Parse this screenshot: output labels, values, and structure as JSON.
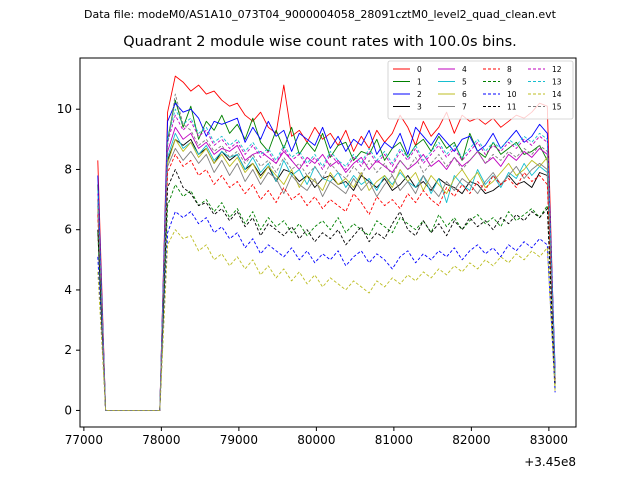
{
  "figure_title": "Data file: modeM0/AS1A10_073T04_9000004058_28091cztM0_level2_quad_clean.evt",
  "chart_data": {
    "type": "line",
    "title": "Quadrant 2 module wise count rates with 100.0s bins.",
    "xlabel": "",
    "ylabel": "",
    "x_offset_label": "+3.45e8",
    "xlim": [
      76950,
      83350
    ],
    "ylim": [
      -0.55,
      11.7
    ],
    "xticks": [
      77000,
      78000,
      79000,
      80000,
      81000,
      82000,
      83000
    ],
    "yticks": [
      0,
      2,
      4,
      6,
      8,
      10
    ],
    "grid": false,
    "legend_placement": "top-right",
    "legend_columns": 4,
    "x": [
      77180,
      77280,
      77380,
      77480,
      77580,
      77680,
      77780,
      77880,
      77980,
      78080,
      78180,
      78280,
      78380,
      78480,
      78580,
      78680,
      78780,
      78880,
      78980,
      79080,
      79180,
      79280,
      79380,
      79480,
      79580,
      79680,
      79780,
      79880,
      79980,
      80080,
      80180,
      80280,
      80380,
      80480,
      80580,
      80680,
      80780,
      80880,
      80980,
      81080,
      81180,
      81280,
      81380,
      81480,
      81580,
      81680,
      81780,
      81880,
      81980,
      82080,
      82180,
      82280,
      82380,
      82480,
      82580,
      82680,
      82780,
      82880,
      82980,
      83080
    ],
    "series": [
      {
        "name": "0",
        "color": "#ff0000",
        "dash": "solid",
        "values": [
          8.3,
          0.0,
          0.0,
          0.0,
          0.0,
          0.0,
          0.0,
          0.0,
          0.0,
          9.9,
          11.1,
          10.9,
          10.6,
          10.8,
          10.5,
          10.6,
          10.3,
          10.1,
          10.2,
          9.8,
          9.6,
          9.9,
          9.4,
          9.2,
          10.8,
          9.1,
          9.3,
          8.9,
          9.4,
          9.0,
          9.2,
          8.8,
          9.3,
          8.6,
          9.1,
          8.7,
          9.3,
          8.9,
          9.2,
          9.8,
          9.4,
          8.8,
          9.6,
          9.1,
          9.4,
          9.9,
          9.2,
          9.8,
          9.6,
          9.7,
          9.5,
          9.7,
          9.4,
          9.6,
          9.8,
          9.7,
          9.9,
          10.2,
          10.1,
          1.0
        ]
      },
      {
        "name": "1",
        "color": "#008000",
        "dash": "solid",
        "values": [
          7.5,
          0.0,
          0.0,
          0.0,
          0.0,
          0.0,
          0.0,
          0.0,
          0.0,
          9.0,
          10.3,
          9.4,
          10.1,
          9.0,
          9.6,
          9.3,
          9.8,
          9.2,
          9.5,
          9.0,
          9.7,
          8.9,
          8.6,
          9.3,
          8.7,
          9.4,
          8.5,
          8.9,
          8.6,
          9.2,
          8.4,
          8.8,
          8.9,
          8.3,
          8.6,
          8.5,
          9.0,
          8.3,
          8.7,
          8.9,
          8.4,
          8.8,
          9.0,
          8.6,
          9.1,
          8.7,
          8.9,
          8.3,
          9.2,
          8.6,
          8.4,
          8.9,
          8.5,
          8.7,
          8.9,
          8.5,
          8.6,
          8.8,
          8.3,
          1.2
        ]
      },
      {
        "name": "2",
        "color": "#0000ff",
        "dash": "solid",
        "values": [
          7.8,
          0.0,
          0.0,
          0.0,
          0.0,
          0.0,
          0.0,
          0.0,
          0.0,
          9.6,
          10.2,
          9.9,
          10.0,
          9.7,
          9.1,
          9.6,
          9.5,
          9.6,
          9.7,
          8.9,
          9.4,
          9.0,
          9.6,
          9.1,
          9.3,
          8.6,
          9.2,
          9.0,
          8.8,
          9.4,
          8.7,
          9.1,
          8.6,
          9.0,
          8.8,
          9.3,
          8.5,
          8.9,
          8.7,
          9.2,
          8.5,
          9.4,
          9.1,
          8.8,
          9.2,
          8.9,
          8.6,
          9.0,
          9.1,
          8.6,
          8.8,
          9.2,
          8.7,
          9.0,
          9.3,
          8.9,
          9.1,
          9.5,
          9.2,
          1.4
        ]
      },
      {
        "name": "3",
        "color": "#000000",
        "dash": "solid",
        "values": [
          6.8,
          0.0,
          0.0,
          0.0,
          0.0,
          0.0,
          0.0,
          0.0,
          0.0,
          8.3,
          9.0,
          8.8,
          9.0,
          8.5,
          8.7,
          8.2,
          8.6,
          8.3,
          8.5,
          8.0,
          8.2,
          7.8,
          8.1,
          7.6,
          8.0,
          7.9,
          7.6,
          7.8,
          7.4,
          7.7,
          7.8,
          7.5,
          7.6,
          7.3,
          7.8,
          7.6,
          7.4,
          7.7,
          7.3,
          7.5,
          7.8,
          7.4,
          7.6,
          7.3,
          7.7,
          7.5,
          7.4,
          7.2,
          7.6,
          7.5,
          7.2,
          7.3,
          7.5,
          7.8,
          7.5,
          7.6,
          7.4,
          7.9,
          7.8,
          1.0
        ]
      },
      {
        "name": "4",
        "color": "#bf00bf",
        "dash": "solid",
        "values": [
          7.0,
          0.0,
          0.0,
          0.0,
          0.0,
          0.0,
          0.0,
          0.0,
          0.0,
          8.6,
          9.4,
          9.0,
          9.2,
          8.7,
          8.9,
          8.5,
          8.7,
          8.6,
          8.8,
          8.3,
          8.5,
          8.6,
          8.4,
          8.2,
          8.6,
          8.3,
          8.0,
          8.4,
          8.2,
          8.5,
          8.1,
          8.3,
          7.9,
          8.2,
          8.4,
          8.0,
          8.3,
          8.1,
          7.9,
          8.3,
          8.0,
          8.2,
          8.5,
          8.1,
          8.3,
          8.0,
          8.4,
          8.1,
          8.3,
          8.6,
          8.2,
          8.4,
          8.1,
          8.5,
          8.3,
          8.6,
          8.4,
          8.7,
          8.5,
          1.1
        ]
      },
      {
        "name": "5",
        "color": "#17becf",
        "dash": "solid",
        "values": [
          6.9,
          0.0,
          0.0,
          0.0,
          0.0,
          0.0,
          0.0,
          0.0,
          0.0,
          8.4,
          9.2,
          8.7,
          8.9,
          8.5,
          8.8,
          8.3,
          8.6,
          8.4,
          8.5,
          8.0,
          8.4,
          7.9,
          8.2,
          7.6,
          8.3,
          7.8,
          8.0,
          7.5,
          8.1,
          7.7,
          7.6,
          7.9,
          7.4,
          7.8,
          7.5,
          7.7,
          7.3,
          7.8,
          7.5,
          7.9,
          7.6,
          7.4,
          7.8,
          7.2,
          7.7,
          6.9,
          7.8,
          7.5,
          7.3,
          8.0,
          7.5,
          7.8,
          7.4,
          7.9,
          7.7,
          8.2,
          7.8,
          8.1,
          7.9,
          1.0
        ]
      },
      {
        "name": "6",
        "color": "#bcbd22",
        "dash": "solid",
        "values": [
          6.7,
          0.0,
          0.0,
          0.0,
          0.0,
          0.0,
          0.0,
          0.0,
          0.0,
          8.2,
          9.0,
          8.6,
          8.9,
          8.4,
          8.7,
          8.2,
          8.5,
          8.1,
          8.4,
          7.9,
          8.2,
          7.7,
          8.1,
          7.8,
          7.5,
          8.0,
          7.4,
          7.8,
          7.6,
          7.3,
          7.9,
          7.5,
          7.7,
          7.4,
          7.9,
          7.3,
          7.6,
          7.8,
          7.4,
          8.0,
          7.6,
          7.9,
          7.3,
          7.8,
          7.5,
          7.2,
          7.7,
          8.0,
          7.6,
          7.9,
          7.4,
          7.6,
          7.9,
          8.2,
          7.8,
          8.0,
          8.3,
          8.1,
          8.4,
          0.8
        ]
      },
      {
        "name": "7",
        "color": "#808080",
        "dash": "solid",
        "values": [
          6.6,
          0.0,
          0.0,
          0.0,
          0.0,
          0.0,
          0.0,
          0.0,
          0.0,
          8.1,
          8.7,
          8.3,
          8.6,
          8.2,
          8.5,
          7.9,
          8.3,
          7.8,
          8.2,
          7.6,
          8.0,
          7.5,
          7.9,
          7.7,
          7.2,
          7.8,
          7.5,
          7.3,
          7.7,
          7.1,
          7.6,
          7.4,
          7.2,
          7.7,
          7.3,
          7.6,
          7.1,
          7.5,
          7.8,
          7.3,
          7.6,
          7.2,
          7.8,
          7.4,
          7.1,
          7.6,
          7.3,
          7.7,
          7.5,
          7.2,
          7.6,
          7.9,
          7.5,
          7.8,
          8.1,
          7.7,
          8.0,
          8.2,
          8.0,
          0.9
        ]
      },
      {
        "name": "8",
        "color": "#ff0000",
        "dash": "dashed",
        "values": [
          6.5,
          0.0,
          0.0,
          0.0,
          0.0,
          0.0,
          0.0,
          0.0,
          0.0,
          7.9,
          8.5,
          8.1,
          8.3,
          7.8,
          8.0,
          7.5,
          7.8,
          7.4,
          7.6,
          7.2,
          7.5,
          7.0,
          7.3,
          6.9,
          7.4,
          7.0,
          7.2,
          6.8,
          7.1,
          6.7,
          7.0,
          6.8,
          6.6,
          7.2,
          6.9,
          6.5,
          7.1,
          6.8,
          7.0,
          6.7,
          7.2,
          6.9,
          7.3,
          7.0,
          6.8,
          7.4,
          7.1,
          7.5,
          7.2,
          7.6,
          7.3,
          7.8,
          7.5,
          7.7,
          7.4,
          7.9,
          7.6,
          7.8,
          7.5,
          0.9
        ]
      },
      {
        "name": "9",
        "color": "#008000",
        "dash": "dashed",
        "values": [
          5.9,
          0.0,
          0.0,
          0.0,
          0.0,
          0.0,
          0.0,
          0.0,
          0.0,
          6.8,
          7.5,
          7.1,
          7.3,
          6.8,
          7.0,
          6.6,
          6.9,
          6.4,
          6.7,
          6.2,
          6.6,
          6.0,
          6.4,
          6.1,
          6.3,
          5.9,
          6.2,
          5.8,
          6.1,
          6.3,
          6.0,
          6.4,
          5.9,
          6.2,
          6.0,
          5.8,
          6.3,
          6.1,
          5.9,
          6.4,
          6.2,
          6.0,
          6.3,
          5.9,
          6.5,
          6.1,
          6.4,
          6.0,
          6.3,
          6.5,
          6.2,
          6.4,
          6.1,
          6.6,
          6.3,
          6.5,
          6.7,
          6.4,
          6.8,
          0.7
        ]
      },
      {
        "name": "10",
        "color": "#0000ff",
        "dash": "dashed",
        "values": [
          5.1,
          0.0,
          0.0,
          0.0,
          0.0,
          0.0,
          0.0,
          0.0,
          0.0,
          5.9,
          6.6,
          6.4,
          6.6,
          6.2,
          6.4,
          5.9,
          6.1,
          5.7,
          5.9,
          5.4,
          5.7,
          5.2,
          5.5,
          5.3,
          5.1,
          5.4,
          5.0,
          5.3,
          4.9,
          5.2,
          5.0,
          5.3,
          4.8,
          5.1,
          5.3,
          4.9,
          5.2,
          5.0,
          4.7,
          5.1,
          5.3,
          4.9,
          5.2,
          5.0,
          5.3,
          5.1,
          5.4,
          5.0,
          5.3,
          5.5,
          5.2,
          5.4,
          5.1,
          5.5,
          5.3,
          5.6,
          5.4,
          5.7,
          5.5,
          0.6
        ]
      },
      {
        "name": "11",
        "color": "#000000",
        "dash": "dashed",
        "values": [
          6.0,
          0.0,
          0.0,
          0.0,
          0.0,
          0.0,
          0.0,
          0.0,
          0.0,
          7.4,
          8.0,
          7.4,
          7.2,
          6.8,
          6.9,
          6.5,
          6.7,
          6.3,
          6.6,
          6.1,
          6.4,
          5.8,
          6.2,
          6.0,
          5.8,
          6.1,
          5.7,
          6.0,
          5.6,
          5.9,
          5.7,
          6.0,
          5.5,
          5.8,
          6.1,
          5.6,
          5.9,
          5.7,
          6.2,
          6.6,
          6.0,
          5.8,
          6.3,
          5.9,
          6.2,
          5.8,
          6.3,
          6.0,
          6.4,
          6.1,
          6.3,
          6.0,
          6.4,
          6.2,
          6.5,
          6.3,
          6.6,
          6.4,
          6.7,
          0.9
        ]
      },
      {
        "name": "12",
        "color": "#bf00bf",
        "dash": "dashed",
        "values": [
          7.2,
          0.0,
          0.0,
          0.0,
          0.0,
          0.0,
          0.0,
          0.0,
          0.0,
          8.9,
          9.8,
          9.3,
          9.6,
          9.1,
          9.3,
          8.8,
          9.0,
          8.7,
          8.9,
          8.5,
          8.8,
          8.4,
          8.6,
          8.2,
          8.7,
          8.3,
          8.5,
          8.1,
          8.4,
          8.0,
          8.5,
          8.2,
          8.0,
          8.4,
          8.1,
          8.6,
          8.2,
          8.5,
          8.1,
          8.6,
          8.3,
          8.7,
          8.2,
          8.5,
          8.8,
          8.4,
          8.7,
          8.3,
          8.6,
          8.9,
          8.5,
          8.8,
          8.6,
          8.9,
          8.7,
          9.0,
          8.8,
          9.1,
          8.9,
          1.1
        ]
      },
      {
        "name": "13",
        "color": "#17becf",
        "dash": "dashed",
        "values": [
          7.3,
          0.0,
          0.0,
          0.0,
          0.0,
          0.0,
          0.0,
          0.0,
          0.0,
          9.0,
          10.0,
          9.5,
          9.7,
          9.2,
          9.4,
          8.9,
          9.1,
          8.8,
          9.0,
          8.6,
          8.9,
          8.5,
          8.7,
          8.3,
          8.8,
          8.4,
          8.6,
          8.2,
          8.5,
          8.1,
          8.6,
          8.3,
          8.1,
          8.5,
          8.2,
          8.7,
          8.3,
          8.6,
          8.2,
          8.7,
          8.4,
          8.8,
          8.3,
          8.6,
          8.9,
          8.5,
          8.8,
          8.4,
          8.7,
          9.0,
          8.6,
          8.9,
          8.7,
          9.0,
          8.8,
          9.1,
          8.9,
          9.2,
          9.0,
          1.2
        ]
      },
      {
        "name": "14",
        "color": "#bcbd22",
        "dash": "dashed",
        "values": [
          4.6,
          0.0,
          0.0,
          0.0,
          0.0,
          0.0,
          0.0,
          0.0,
          0.0,
          5.5,
          6.0,
          5.7,
          5.8,
          5.3,
          5.5,
          5.0,
          5.2,
          4.8,
          5.1,
          4.7,
          5.0,
          4.5,
          4.8,
          4.4,
          4.7,
          4.3,
          4.6,
          4.2,
          4.5,
          4.1,
          4.4,
          4.2,
          4.0,
          4.3,
          4.1,
          3.9,
          4.3,
          4.1,
          4.4,
          4.2,
          4.5,
          4.3,
          4.6,
          4.4,
          4.7,
          4.5,
          4.8,
          4.6,
          4.9,
          4.7,
          5.0,
          4.8,
          5.1,
          4.9,
          5.2,
          5.0,
          5.3,
          5.1,
          5.4,
          0.6
        ]
      },
      {
        "name": "15",
        "color": "#808080",
        "dash": "dashed",
        "values": [
          7.0,
          0.0,
          0.0,
          0.0,
          0.0,
          0.0,
          0.0,
          0.0,
          0.0,
          8.8,
          10.5,
          9.5,
          9.3,
          8.8,
          9.0,
          8.6,
          8.8,
          8.4,
          8.6,
          8.2,
          8.5,
          8.1,
          8.3,
          7.9,
          8.4,
          8.0,
          8.2,
          7.8,
          8.1,
          7.7,
          8.2,
          7.9,
          7.7,
          8.1,
          7.8,
          8.3,
          7.9,
          8.2,
          7.8,
          8.3,
          8.0,
          8.4,
          7.9,
          8.2,
          8.5,
          8.1,
          8.4,
          8.0,
          8.3,
          8.6,
          8.2,
          8.5,
          8.3,
          8.6,
          8.4,
          8.7,
          8.5,
          8.8,
          8.6,
          1.0
        ]
      }
    ]
  }
}
